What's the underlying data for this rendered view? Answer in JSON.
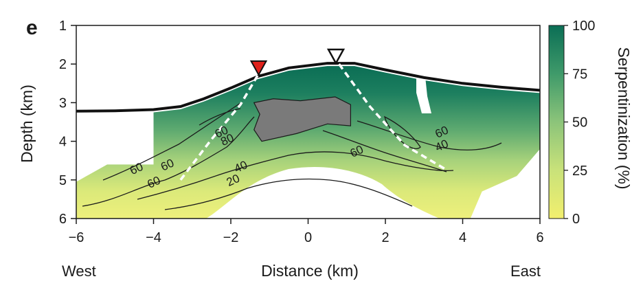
{
  "panel_label": "e",
  "chart_data": {
    "type": "heatmap",
    "title": "",
    "xlabel": "Distance (km)",
    "ylabel": "Depth (km)",
    "xlim": [
      -6,
      6
    ],
    "ylim": [
      6,
      1
    ],
    "x_ticks": [
      "−6",
      "−4",
      "−2",
      "0",
      "2",
      "4",
      "6"
    ],
    "y_ticks": [
      "1",
      "2",
      "3",
      "4",
      "5",
      "6"
    ],
    "direction_labels": {
      "left": "West",
      "right": "East"
    },
    "colorbar": {
      "label": "Serpentinization (%)",
      "range": [
        0,
        100
      ],
      "ticks": [
        "0",
        "25",
        "50",
        "75",
        "100"
      ],
      "colors": [
        "#f2ef6e",
        "#c9e27a",
        "#8cc47a",
        "#3f9a6a",
        "#0b6e55"
      ]
    },
    "seafloor_profile": [
      {
        "x": -6,
        "depth": 3.22
      },
      {
        "x": -5,
        "depth": 3.21
      },
      {
        "x": -4,
        "depth": 3.18
      },
      {
        "x": -3.3,
        "depth": 3.1
      },
      {
        "x": -2.7,
        "depth": 2.9
      },
      {
        "x": -2,
        "depth": 2.62
      },
      {
        "x": -1.3,
        "depth": 2.32
      },
      {
        "x": -0.5,
        "depth": 2.1
      },
      {
        "x": 0.5,
        "depth": 1.98
      },
      {
        "x": 1.2,
        "depth": 1.98
      },
      {
        "x": 2,
        "depth": 2.15
      },
      {
        "x": 3,
        "depth": 2.35
      },
      {
        "x": 4,
        "depth": 2.5
      },
      {
        "x": 5,
        "depth": 2.6
      },
      {
        "x": 6,
        "depth": 2.68
      }
    ],
    "markers": [
      {
        "name": "red",
        "x": -1.28,
        "depth": 2.1,
        "color": "#e0211b"
      },
      {
        "name": "open",
        "x": 0.72,
        "depth": 1.8,
        "color": "#ffffff"
      }
    ],
    "fault_lines": [
      [
        {
          "x": -3.3,
          "depth": 5.0
        },
        {
          "x": -2.5,
          "depth": 3.95
        },
        {
          "x": -1.75,
          "depth": 3.05
        },
        {
          "x": -1.25,
          "depth": 2.2
        }
      ],
      [
        {
          "x": 0.8,
          "depth": 2.0
        },
        {
          "x": 1.6,
          "depth": 3.1
        },
        {
          "x": 2.5,
          "depth": 4.1
        },
        {
          "x": 3.6,
          "depth": 4.75
        }
      ]
    ],
    "gray_body": [
      {
        "x": -1.4,
        "depth": 3.0
      },
      {
        "x": -0.9,
        "depth": 2.9
      },
      {
        "x": -0.2,
        "depth": 2.95
      },
      {
        "x": 0.7,
        "depth": 2.85
      },
      {
        "x": 1.1,
        "depth": 3.05
      },
      {
        "x": 1.1,
        "depth": 3.6
      },
      {
        "x": 0.5,
        "depth": 3.55
      },
      {
        "x": -0.3,
        "depth": 3.8
      },
      {
        "x": -1.2,
        "depth": 4.0
      },
      {
        "x": -1.4,
        "depth": 3.7
      },
      {
        "x": -1.25,
        "depth": 3.3
      }
    ],
    "contour_labels": [
      {
        "text": "60",
        "x": -2.2,
        "depth": 3.85
      },
      {
        "text": "80",
        "x": -2.05,
        "depth": 4.05
      },
      {
        "text": "60",
        "x": -4.4,
        "depth": 4.8
      },
      {
        "text": "60",
        "x": -3.6,
        "depth": 4.7
      },
      {
        "text": "60",
        "x": -3.95,
        "depth": 5.15
      },
      {
        "text": "40",
        "x": -1.7,
        "depth": 4.75
      },
      {
        "text": "20",
        "x": -1.9,
        "depth": 5.1
      },
      {
        "text": "60",
        "x": 1.3,
        "depth": 4.35
      },
      {
        "text": "60",
        "x": 3.5,
        "depth": 3.85
      },
      {
        "text": "40",
        "x": 3.5,
        "depth": 4.2
      }
    ]
  }
}
